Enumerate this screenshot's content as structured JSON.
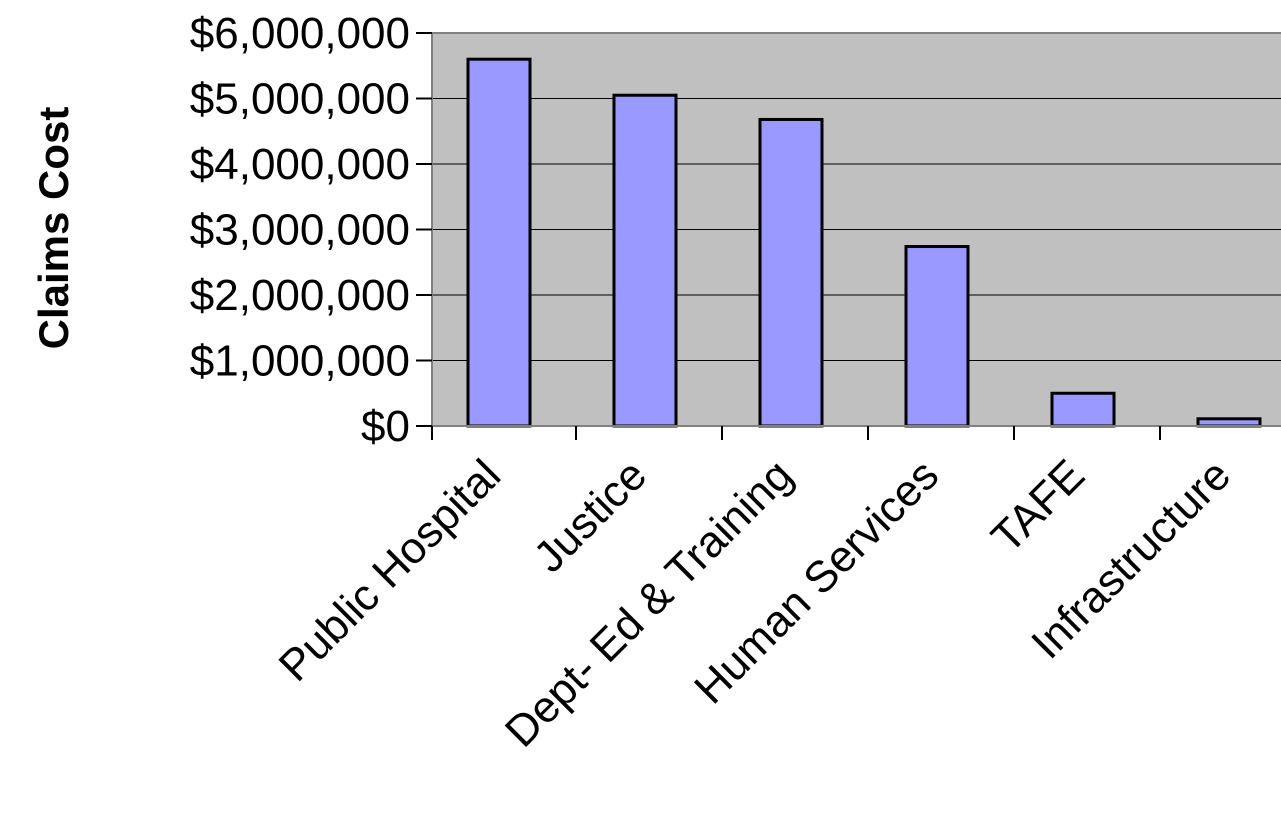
{
  "chart_data": {
    "type": "bar",
    "title": "",
    "xlabel": "",
    "ylabel": "Claims Cost",
    "ylim": [
      0,
      6000000
    ],
    "yticks": [
      0,
      1000000,
      2000000,
      3000000,
      4000000,
      5000000,
      6000000
    ],
    "ytick_labels": [
      "$0",
      "$1,000,000",
      "$2,000,000",
      "$3,000,000",
      "$4,000,000",
      "$5,000,000",
      "$6,000,000"
    ],
    "categories": [
      "Public Hospital",
      "Justice",
      "Dept- Ed & Training",
      "Human Services",
      "TAFE",
      "Infrastructure"
    ],
    "values": [
      5600000,
      5050000,
      4680000,
      2740000,
      500000,
      110000
    ],
    "grid": true,
    "legend": "none",
    "colors": {
      "plot_background": "#c0c0c0",
      "bar_fill": "#9999ff",
      "bar_stroke": "#000000",
      "gridline": "#000000",
      "axis": "#808080"
    }
  }
}
